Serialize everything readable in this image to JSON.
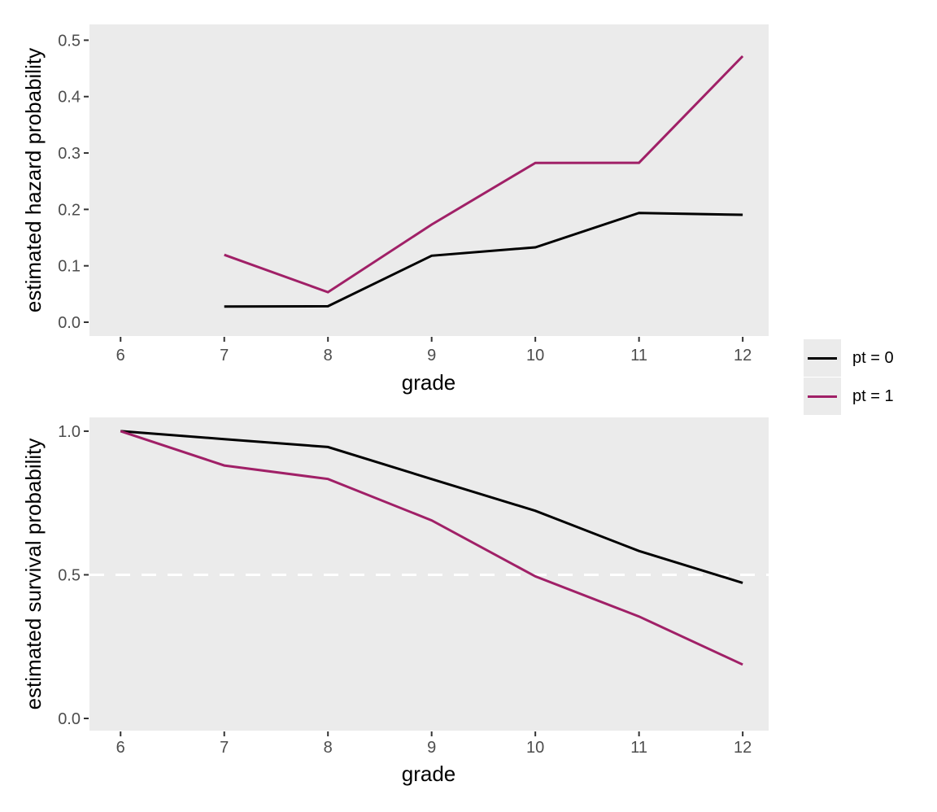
{
  "figure": {
    "background": "#FFFFFF",
    "panel_bg": "#EBEBEB",
    "tick_color": "#333333",
    "tick_label_color": "#4D4D4D",
    "axis_title_color": "#000000"
  },
  "legend": {
    "position": "right-center",
    "key_bg": "#EBEBEB",
    "items": [
      {
        "label": "pt = 0",
        "color": "#000000"
      },
      {
        "label": "pt = 1",
        "color": "#A02067"
      }
    ]
  },
  "chart_data": [
    {
      "type": "line",
      "xlabel": "grade",
      "ylabel": "estimated hazard probability",
      "grid": false,
      "xlim": [
        5.7,
        12.25
      ],
      "ylim": [
        -0.0245,
        0.528
      ],
      "x_ticks": [
        6,
        7,
        8,
        9,
        10,
        11,
        12
      ],
      "x_tick_labels": [
        "6",
        "7",
        "8",
        "9",
        "10",
        "11",
        "12"
      ],
      "y_ticks": [
        0.0,
        0.1,
        0.2,
        0.3,
        0.4,
        0.5
      ],
      "y_tick_labels": [
        "0.0",
        "0.1",
        "0.2",
        "0.3",
        "0.4",
        "0.5"
      ],
      "series": [
        {
          "name": "pt = 0",
          "color": "#000000",
          "x": [
            7,
            8,
            9,
            10,
            11,
            12
          ],
          "y": [
            0.0277,
            0.0283,
            0.1179,
            0.1327,
            0.1938,
            0.1905
          ]
        },
        {
          "name": "pt = 1",
          "color": "#A02067",
          "x": [
            7,
            8,
            9,
            10,
            11,
            12
          ],
          "y": [
            0.1195,
            0.0532,
            0.1731,
            0.2825,
            0.2826,
            0.4717
          ]
        }
      ]
    },
    {
      "type": "line",
      "xlabel": "grade",
      "ylabel": "estimated survival probability",
      "grid": false,
      "xlim": [
        5.7,
        12.25
      ],
      "ylim": [
        -0.0425,
        1.048
      ],
      "x_ticks": [
        6,
        7,
        8,
        9,
        10,
        11,
        12
      ],
      "x_tick_labels": [
        "6",
        "7",
        "8",
        "9",
        "10",
        "11",
        "12"
      ],
      "y_ticks": [
        0.0,
        0.5,
        1.0
      ],
      "y_tick_labels": [
        "0.0",
        "0.5",
        "1.0"
      ],
      "reference_line": {
        "y": 0.5,
        "color": "#FFFFFF",
        "style": "dashed"
      },
      "series": [
        {
          "name": "pt = 0",
          "color": "#000000",
          "x": [
            6,
            7,
            8,
            9,
            10,
            11,
            12
          ],
          "y": [
            1.0,
            0.9723,
            0.9448,
            0.8334,
            0.7228,
            0.5828,
            0.4718
          ]
        },
        {
          "name": "pt = 1",
          "color": "#A02067",
          "x": [
            6,
            7,
            8,
            9,
            10,
            11,
            12
          ],
          "y": [
            1.0,
            0.8805,
            0.8337,
            0.6894,
            0.4946,
            0.3548,
            0.1875
          ]
        }
      ]
    }
  ]
}
